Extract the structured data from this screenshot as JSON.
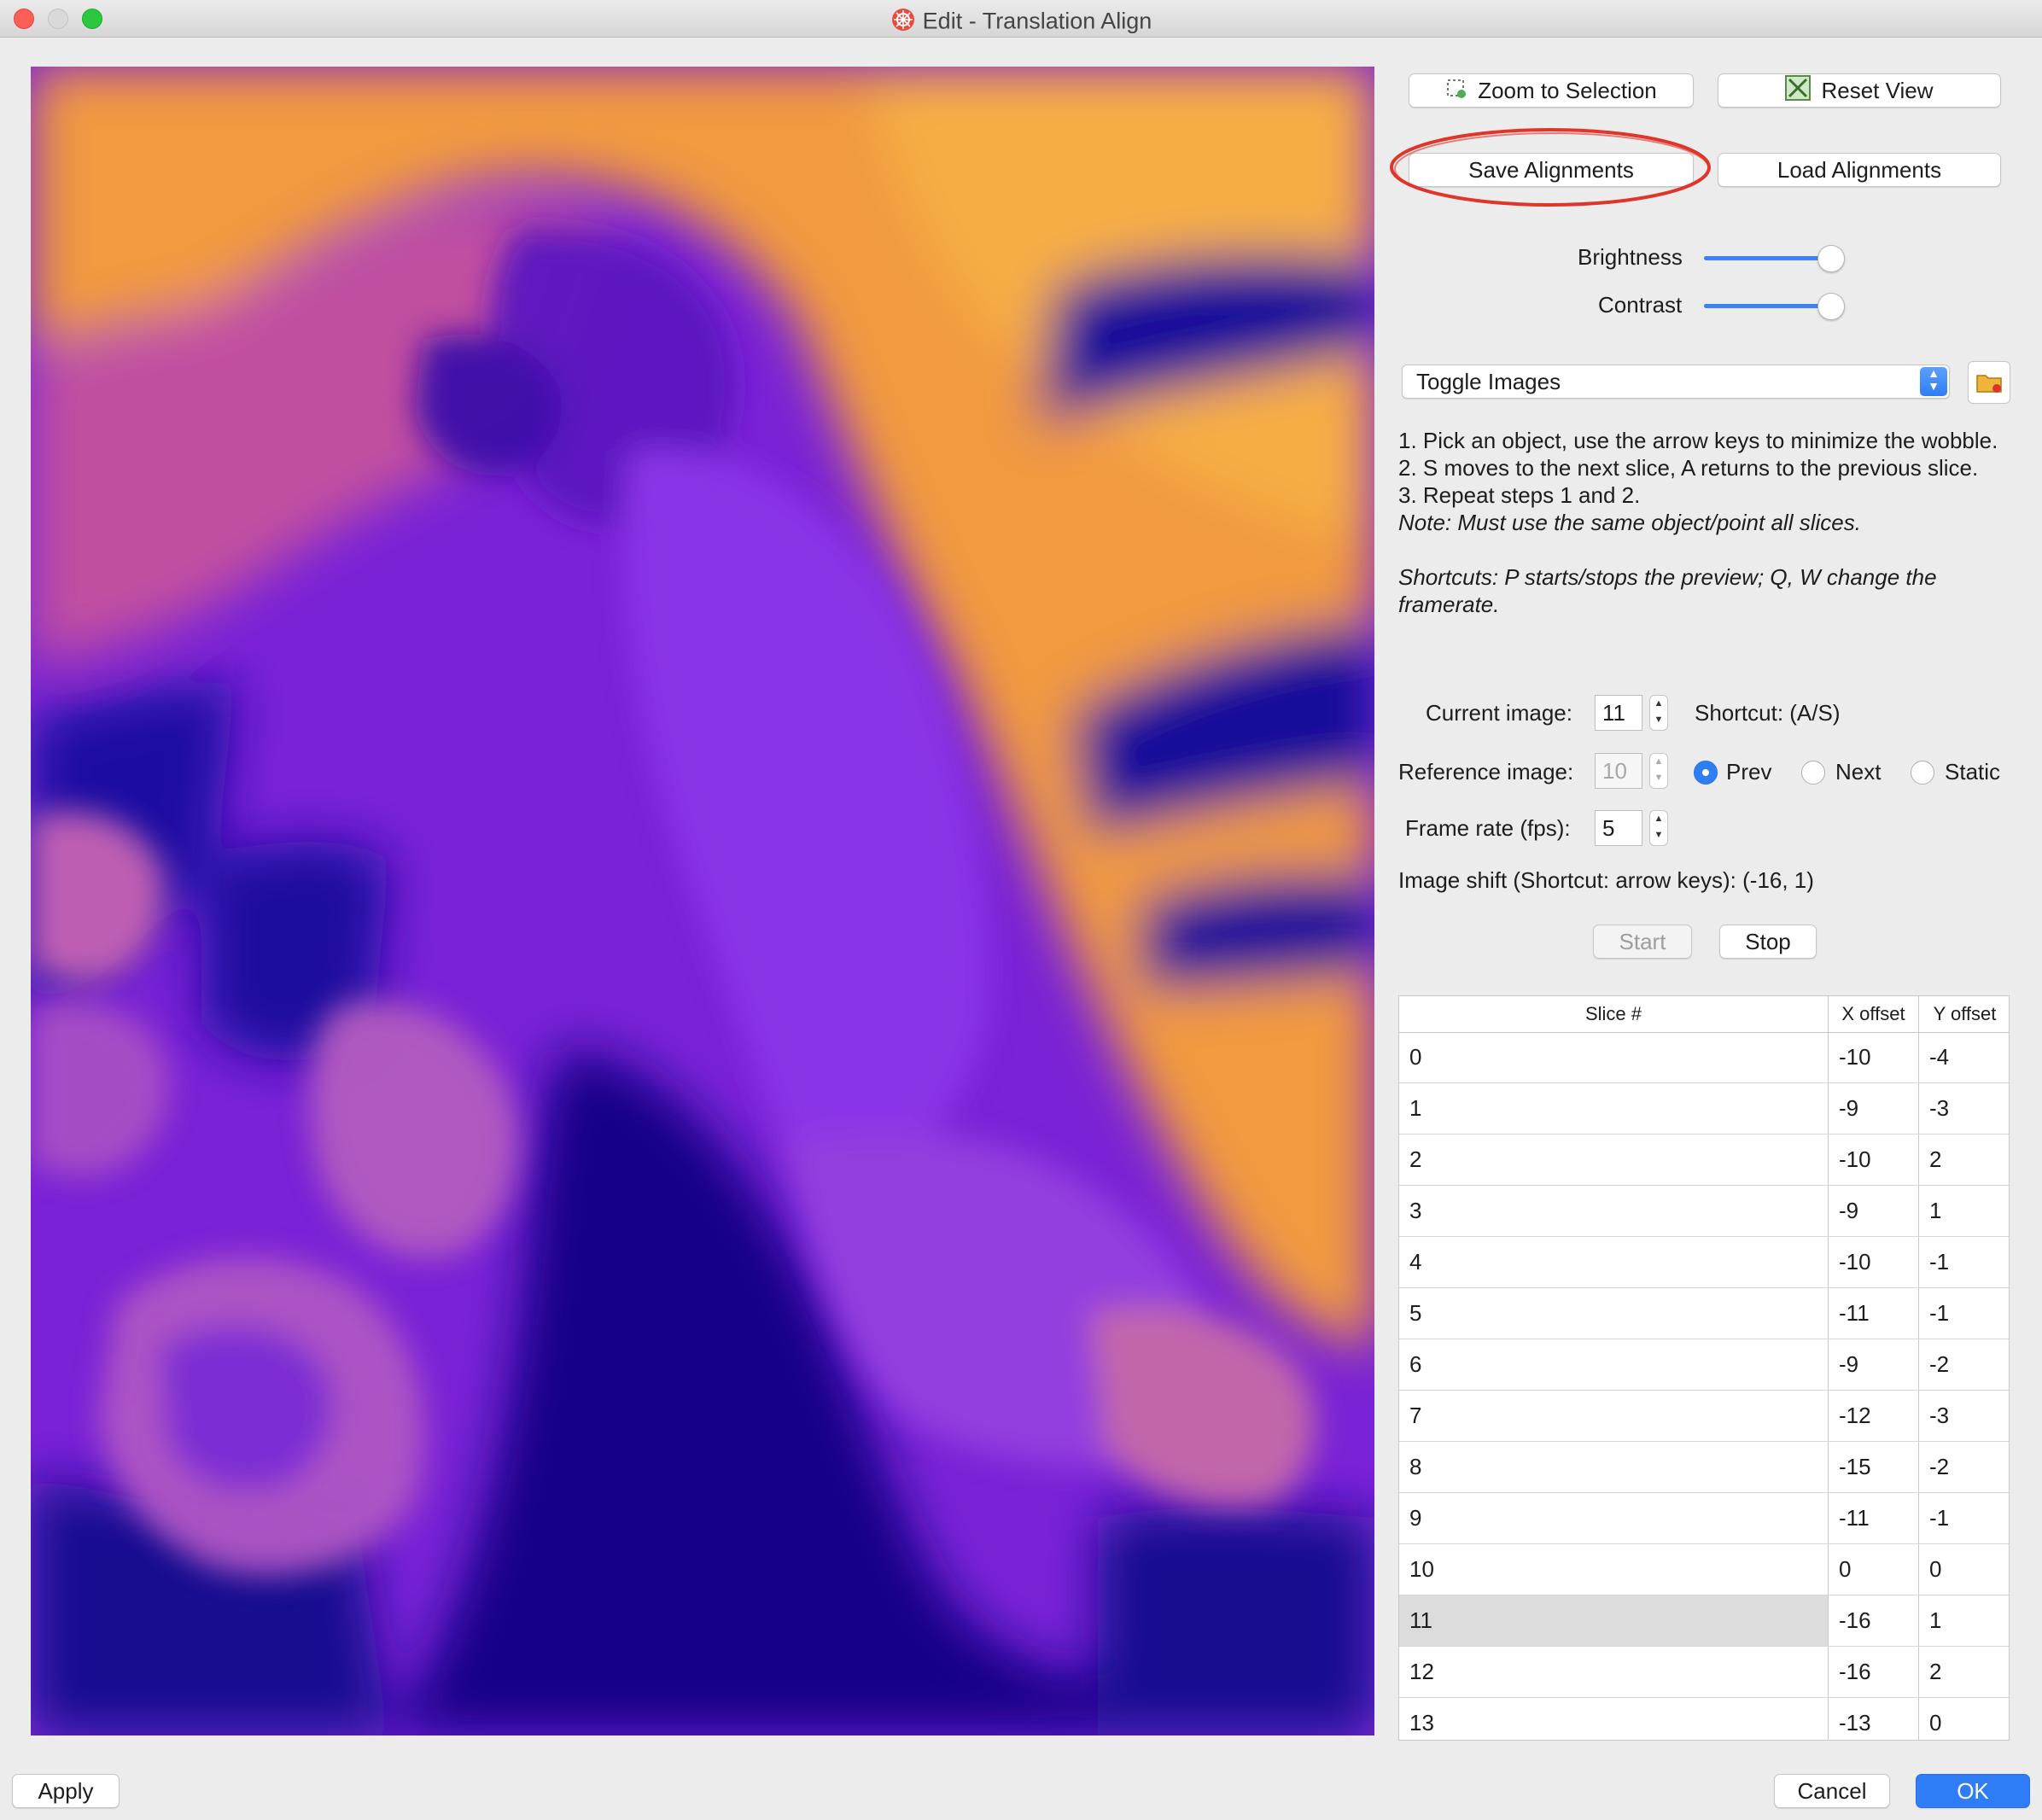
{
  "window": {
    "title": "Edit - Translation Align"
  },
  "toolbar": {
    "zoom_to_selection": "Zoom to Selection",
    "reset_view": "Reset View",
    "save_alignments": "Save Alignments",
    "load_alignments": "Load Alignments"
  },
  "adjustments": {
    "brightness_label": "Brightness",
    "contrast_label": "Contrast",
    "brightness_level": 0.9,
    "contrast_level": 0.9
  },
  "mode_select": {
    "selected": "Toggle Images"
  },
  "instructions": {
    "line1": "1. Pick an object, use the arrow keys to minimize the wobble.",
    "line2": "2. S moves to the next slice, A returns to the previous slice.",
    "line3": "3. Repeat steps 1 and 2.",
    "note": "Note: Must use the same object/point all slices.",
    "shortcuts": "Shortcuts: P starts/stops the preview; Q, W change the framerate."
  },
  "controls": {
    "current_image_label": "Current image:",
    "current_image_value": "11",
    "current_shortcut": "Shortcut: (A/S)",
    "reference_image_label": "Reference image:",
    "reference_image_value": "10",
    "radio_prev": "Prev",
    "radio_next": "Next",
    "radio_static": "Static",
    "radio_selected": "Prev",
    "frame_rate_label": "Frame rate (fps):",
    "frame_rate_value": "5",
    "image_shift_text": "Image shift (Shortcut: arrow keys): (-16, 1)",
    "start_label": "Start",
    "stop_label": "Stop"
  },
  "table": {
    "headers": [
      "Slice #",
      "X offset",
      "Y offset"
    ],
    "rows": [
      {
        "slice": "0",
        "x": "-10",
        "y": "-4"
      },
      {
        "slice": "1",
        "x": "-9",
        "y": "-3"
      },
      {
        "slice": "2",
        "x": "-10",
        "y": "2"
      },
      {
        "slice": "3",
        "x": "-9",
        "y": "1"
      },
      {
        "slice": "4",
        "x": "-10",
        "y": "-1"
      },
      {
        "slice": "5",
        "x": "-11",
        "y": "-1"
      },
      {
        "slice": "6",
        "x": "-9",
        "y": "-2"
      },
      {
        "slice": "7",
        "x": "-12",
        "y": "-3"
      },
      {
        "slice": "8",
        "x": "-15",
        "y": "-2"
      },
      {
        "slice": "9",
        "x": "-11",
        "y": "-1"
      },
      {
        "slice": "10",
        "x": "0",
        "y": "0"
      },
      {
        "slice": "11",
        "x": "-16",
        "y": "1"
      },
      {
        "slice": "12",
        "x": "-16",
        "y": "2"
      },
      {
        "slice": "13",
        "x": "-13",
        "y": "0"
      }
    ],
    "selected_slice": "11"
  },
  "footer": {
    "apply": "Apply",
    "cancel": "Cancel",
    "ok": "OK"
  },
  "colors": {
    "accent": "#2e7cf6",
    "highlight_circle": "#e0352b",
    "image_dark": "#13068c",
    "image_mid": "#8a2be2",
    "image_bright": "#f7a13a"
  },
  "icons": [
    "app-icon",
    "zoom-selection-icon",
    "reset-view-icon",
    "folder-icon",
    "chevron-updown-icon"
  ]
}
